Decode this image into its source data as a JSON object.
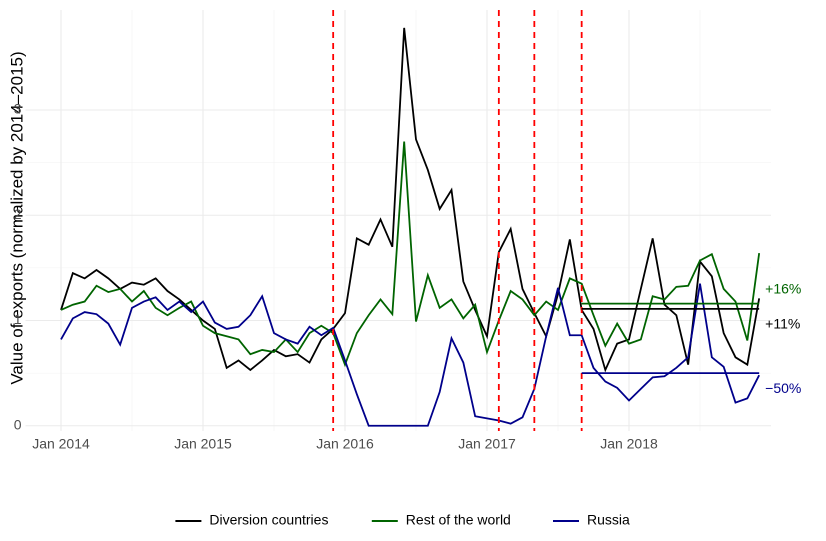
{
  "chart_data": {
    "type": "line",
    "y_label": "Value of exports (normalized by 2014–2015)",
    "x": [
      "2014-01",
      "2014-02",
      "2014-03",
      "2014-04",
      "2014-05",
      "2014-06",
      "2014-07",
      "2014-08",
      "2014-09",
      "2014-10",
      "2014-11",
      "2014-12",
      "2015-01",
      "2015-02",
      "2015-03",
      "2015-04",
      "2015-05",
      "2015-06",
      "2015-07",
      "2015-08",
      "2015-09",
      "2015-10",
      "2015-11",
      "2015-12",
      "2016-01",
      "2016-02",
      "2016-03",
      "2016-04",
      "2016-05",
      "2016-06",
      "2016-07",
      "2016-08",
      "2016-09",
      "2016-10",
      "2016-11",
      "2016-12",
      "2017-01",
      "2017-02",
      "2017-03",
      "2017-04",
      "2017-05",
      "2017-06",
      "2017-07",
      "2017-08",
      "2017-09",
      "2017-10",
      "2017-11",
      "2017-12",
      "2018-01",
      "2018-02",
      "2018-03",
      "2018-04",
      "2018-05",
      "2018-06",
      "2018-07",
      "2018-08",
      "2018-09",
      "2018-10",
      "2018-11",
      "2018-12"
    ],
    "series": [
      {
        "name": "Diversion countries",
        "color": "#000000",
        "values": [
          1.1,
          1.45,
          1.4,
          1.48,
          1.4,
          1.3,
          1.36,
          1.34,
          1.4,
          1.28,
          1.2,
          1.1,
          1.0,
          0.92,
          0.55,
          0.62,
          0.53,
          0.62,
          0.72,
          0.66,
          0.68,
          0.6,
          0.82,
          0.92,
          1.07,
          1.78,
          1.72,
          1.96,
          1.7,
          3.78,
          2.72,
          2.43,
          2.06,
          2.24,
          1.37,
          1.1,
          0.85,
          1.65,
          1.87,
          1.3,
          1.07,
          0.85,
          1.25,
          1.77,
          1.1,
          0.92,
          0.53,
          0.78,
          0.82,
          1.3,
          1.78,
          1.15,
          1.05,
          0.58,
          1.56,
          1.42,
          0.88,
          0.65,
          0.58,
          1.21
        ]
      },
      {
        "name": "Rest of the world",
        "color": "#006400",
        "values": [
          1.1,
          1.15,
          1.18,
          1.33,
          1.27,
          1.3,
          1.18,
          1.28,
          1.12,
          1.05,
          1.12,
          1.18,
          0.95,
          0.88,
          0.85,
          0.82,
          0.68,
          0.72,
          0.7,
          0.82,
          0.7,
          0.88,
          0.95,
          0.88,
          0.58,
          0.88,
          1.05,
          1.2,
          1.06,
          2.7,
          0.99,
          1.43,
          1.12,
          1.2,
          1.02,
          1.15,
          0.7,
          1.0,
          1.28,
          1.2,
          1.05,
          1.18,
          1.1,
          1.4,
          1.35,
          1.05,
          0.76,
          0.97,
          0.78,
          0.82,
          1.23,
          1.2,
          1.32,
          1.33,
          1.57,
          1.63,
          1.3,
          1.18,
          0.81,
          1.64
        ]
      },
      {
        "name": "Russia",
        "color": "#00008b",
        "values": [
          0.82,
          1.02,
          1.08,
          1.06,
          0.97,
          0.77,
          1.12,
          1.18,
          1.22,
          1.1,
          1.18,
          1.08,
          1.18,
          0.98,
          0.92,
          0.94,
          1.05,
          1.23,
          0.88,
          0.82,
          0.78,
          0.94,
          0.86,
          0.93,
          0.62,
          0.3,
          0.0,
          0.0,
          0.0,
          0.0,
          0.0,
          0.0,
          0.32,
          0.83,
          0.6,
          0.09,
          0.07,
          0.05,
          0.02,
          0.08,
          0.35,
          0.85,
          1.31,
          0.86,
          0.86,
          0.55,
          0.42,
          0.36,
          0.24,
          0.35,
          0.46,
          0.47,
          0.55,
          0.65,
          1.35,
          0.65,
          0.56,
          0.22,
          0.26,
          0.48
        ]
      }
    ],
    "events": [
      "2015-12",
      "2017-02",
      "2017-05",
      "2017-09"
    ],
    "event_color": "#ff0000",
    "reference_lines": [
      {
        "from": "2017-09",
        "to": "2018-12",
        "value": 1.16,
        "label": "+16%",
        "color": "#006400"
      },
      {
        "from": "2017-09",
        "to": "2018-12",
        "value": 1.11,
        "label": "+11%",
        "color": "#000000"
      },
      {
        "from": "2017-09",
        "to": "2018-12",
        "value": 0.5,
        "label": "−50%",
        "color": "#00008b"
      }
    ],
    "xlim": [
      "2013-10",
      "2019-01"
    ],
    "xticks": [
      {
        "value": "2014-01",
        "label": "Jan 2014"
      },
      {
        "value": "2015-01",
        "label": "Jan 2015"
      },
      {
        "value": "2016-01",
        "label": "Jan 2016"
      },
      {
        "value": "2017-01",
        "label": "Jan 2017"
      },
      {
        "value": "2018-01",
        "label": "Jan 2018"
      }
    ],
    "ylim": [
      -0.05,
      3.95
    ],
    "yticks": [
      0,
      1,
      2,
      3
    ],
    "grid": true,
    "legend": "bottom"
  }
}
